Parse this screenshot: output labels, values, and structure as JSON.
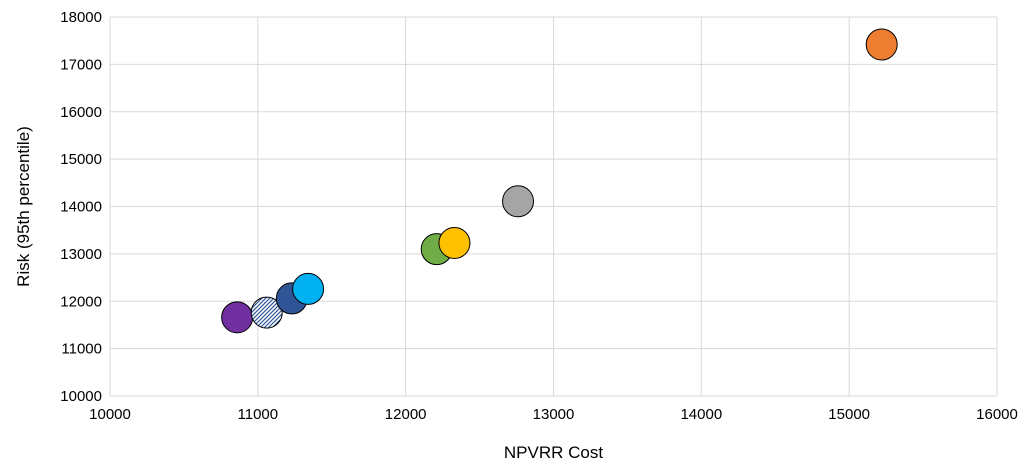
{
  "chart_data": {
    "type": "scatter",
    "title": "",
    "xlabel": "NPVRR Cost",
    "ylabel": "Risk  (95th percentile)",
    "xlim": [
      10000,
      16000
    ],
    "ylim": [
      10000,
      18000
    ],
    "xticks": [
      10000,
      11000,
      12000,
      13000,
      14000,
      15000,
      16000
    ],
    "yticks": [
      10000,
      11000,
      12000,
      13000,
      14000,
      15000,
      16000,
      17000,
      18000
    ],
    "grid": true,
    "legend": "none",
    "points": [
      {
        "x": 10860,
        "y": 11660,
        "color": "#7030a0",
        "fill": "solid"
      },
      {
        "x": 11060,
        "y": 11760,
        "color": "#8eaadb",
        "fill": "hatched"
      },
      {
        "x": 11230,
        "y": 12060,
        "color": "#2f5597",
        "fill": "solid"
      },
      {
        "x": 11340,
        "y": 12260,
        "color": "#00b0f0",
        "fill": "solid"
      },
      {
        "x": 12210,
        "y": 13100,
        "color": "#70ad47",
        "fill": "solid"
      },
      {
        "x": 12330,
        "y": 13230,
        "color": "#ffc000",
        "fill": "solid"
      },
      {
        "x": 12760,
        "y": 14110,
        "color": "#a5a5a5",
        "fill": "solid"
      },
      {
        "x": 15220,
        "y": 17420,
        "color": "#ed7d31",
        "fill": "solid"
      }
    ]
  }
}
